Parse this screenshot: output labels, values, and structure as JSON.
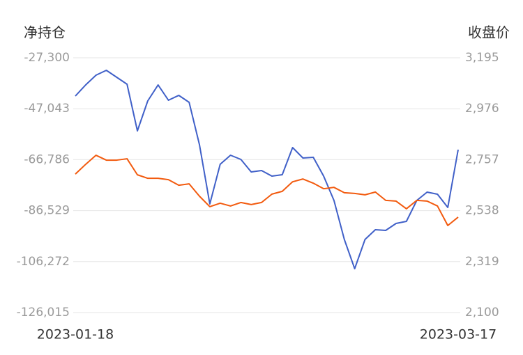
{
  "chart_data": {
    "type": "line",
    "y_label": "净持仓",
    "y2_label": "收盘价",
    "categories": [
      "2023-01-18",
      null,
      null,
      null,
      null,
      null,
      null,
      null,
      null,
      null,
      null,
      null,
      null,
      null,
      null,
      null,
      null,
      null,
      null,
      null,
      null,
      null,
      null,
      null,
      null,
      null,
      null,
      null,
      null,
      null,
      null,
      null,
      null,
      null,
      null,
      null,
      null,
      "2023-03-17"
    ],
    "series": [
      {
        "color": "#4060c8",
        "axis": "y",
        "values": [
          -42134,
          -37819,
          -34043,
          -32155,
          -34852,
          -37549,
          -55619,
          -44022,
          -37819,
          -43752,
          -41864,
          -44561,
          -61014,
          -83939,
          -68566,
          -65060,
          -66678,
          -71533,
          -70993,
          -73151,
          -72611,
          -62093,
          -66138,
          -65869,
          -73151,
          -82590,
          -97695,
          -109022,
          -97695,
          -93919,
          -94189,
          -91491,
          -90683,
          -82590,
          -79354,
          -80163,
          -85288,
          -62902
        ]
      },
      {
        "color": "#f25a0e",
        "axis": "y2",
        "values": [
          2695,
          2737,
          2776,
          2755,
          2755,
          2761,
          2692,
          2677,
          2677,
          2671,
          2647,
          2653,
          2600,
          2555,
          2570,
          2558,
          2573,
          2564,
          2573,
          2609,
          2621,
          2662,
          2674,
          2656,
          2632,
          2638,
          2615,
          2612,
          2606,
          2618,
          2582,
          2579,
          2546,
          2582,
          2579,
          2558,
          2474,
          2510
        ]
      }
    ],
    "ylim": [
      -126015,
      -27300
    ],
    "yticks": [
      {
        "value": -27300,
        "label": "-27,300"
      },
      {
        "value": -47043,
        "label": "-47,043"
      },
      {
        "value": -66786,
        "label": "-66,786"
      },
      {
        "value": -86529,
        "label": "-86,529"
      },
      {
        "value": -106272,
        "label": "-106,272"
      },
      {
        "value": -126015,
        "label": "-126,015"
      }
    ],
    "y2lim": [
      2100,
      3195
    ],
    "y2ticks": [
      {
        "value": 3195,
        "label": "3,195"
      },
      {
        "value": 2976,
        "label": "2,976"
      },
      {
        "value": 2757,
        "label": "2,757"
      },
      {
        "value": 2538,
        "label": "2,538"
      },
      {
        "value": 2319,
        "label": "2,319"
      },
      {
        "value": 2100,
        "label": "2,100"
      }
    ],
    "grid": true
  }
}
